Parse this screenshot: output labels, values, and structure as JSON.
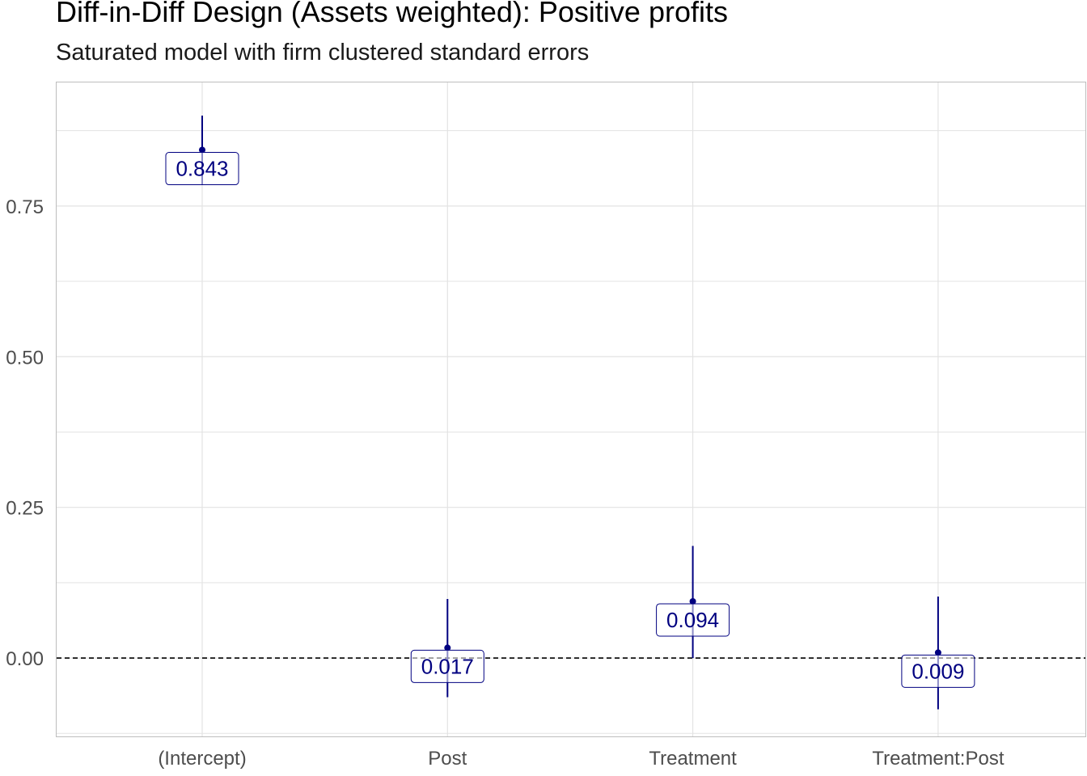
{
  "title": "Diff-in-Diff Design (Assets weighted): Positive profits",
  "subtitle": "Saturated model with firm clustered standard errors",
  "chart_data": {
    "type": "scatter",
    "subtype": "coefficient plot with error bars",
    "categories": [
      "(Intercept)",
      "Post",
      "Treatment",
      "Treatment:Post"
    ],
    "estimates": [
      0.843,
      0.017,
      0.094,
      0.009
    ],
    "labels": [
      "0.843",
      "0.017",
      "0.094",
      "0.009"
    ],
    "ci_low": [
      0.785,
      -0.065,
      0.0,
      -0.085
    ],
    "ci_high": [
      0.9,
      0.098,
      0.186,
      0.102
    ],
    "reference_line": 0,
    "y_ticks": [
      0,
      0.25,
      0.5,
      0.75
    ],
    "y_tick_labels": [
      "0.00",
      "0.25",
      "0.50",
      "0.75"
    ],
    "ylim": [
      -0.13,
      0.955
    ],
    "xlabel": "",
    "ylabel": "",
    "grid": true,
    "legend": "none",
    "colors": {
      "series": "#000080",
      "grid": "#e3e3e3",
      "panel_border": "#bdbdbd",
      "reference": "#000000",
      "tick_text": "#4d4d4d"
    }
  }
}
